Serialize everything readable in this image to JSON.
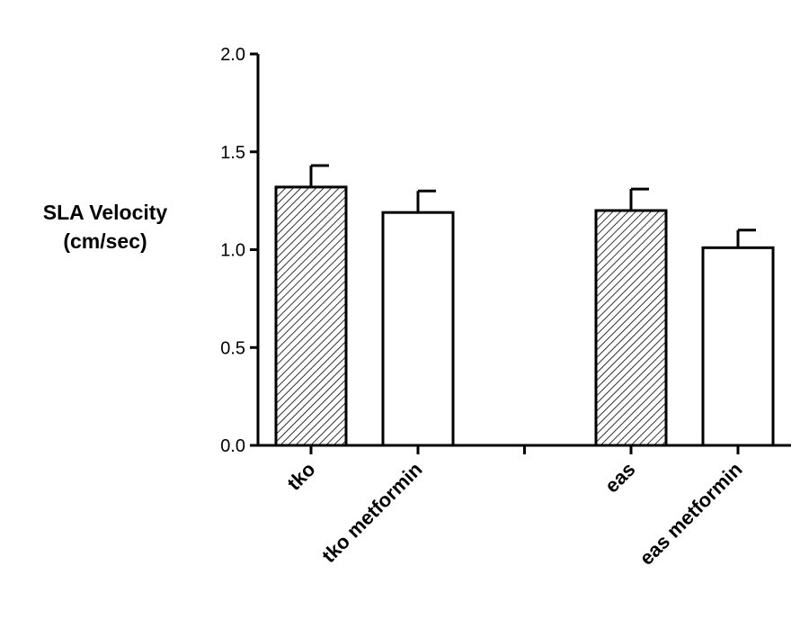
{
  "chart_data": {
    "type": "bar",
    "categories": [
      "tko",
      "tko metformin",
      "eas",
      "eas metformin"
    ],
    "values": [
      1.32,
      1.19,
      1.2,
      1.01
    ],
    "errors": [
      0.11,
      0.11,
      0.11,
      0.09
    ],
    "bar_fill": [
      "hatched",
      "white",
      "hatched",
      "white"
    ],
    "ylabel_lines": [
      "SLA Velocity",
      "(cm/sec)"
    ],
    "ylim": [
      0,
      2.0
    ],
    "yticks": [
      "0.0",
      "0.5",
      "1.0",
      "1.5",
      "2.0"
    ],
    "grid": false,
    "legend": "none",
    "colors": {
      "stroke": "#000000",
      "background": "#ffffff",
      "hatch": "#000000"
    }
  }
}
